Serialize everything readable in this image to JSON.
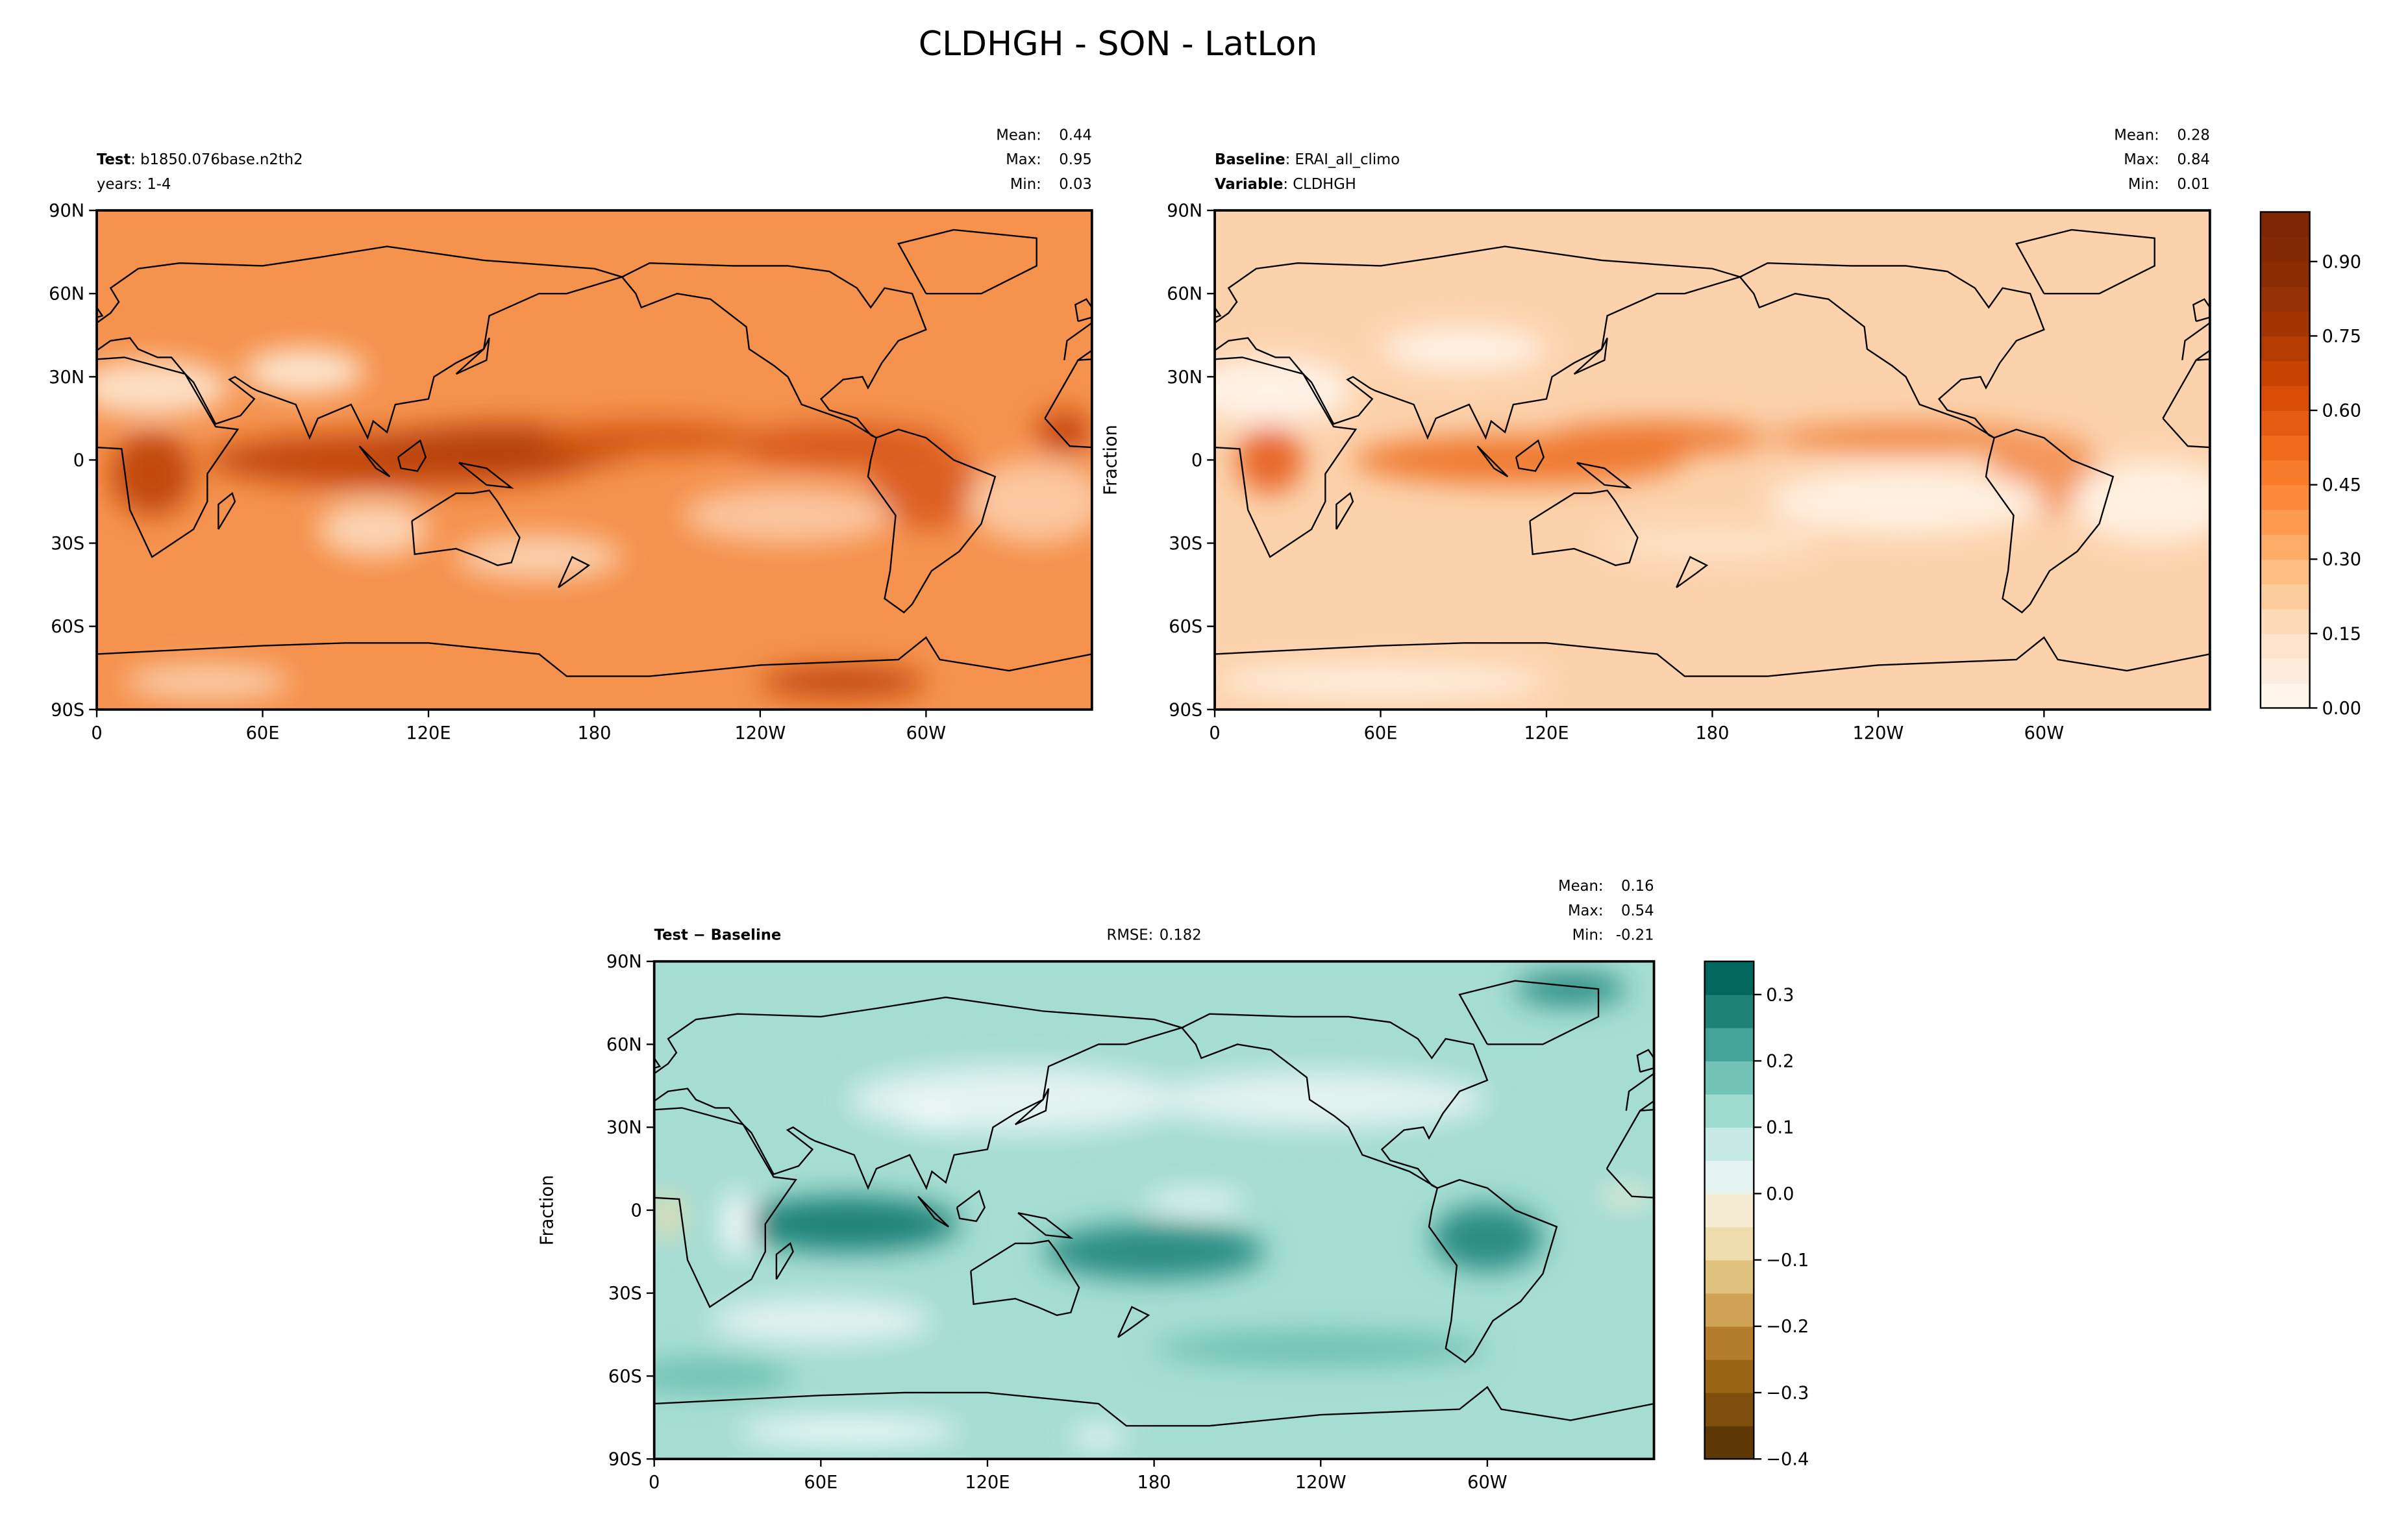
{
  "title": "CLDHGH - SON - LatLon",
  "chart_data": [
    {
      "type": "contour",
      "name_lines": [
        [
          {
            "text": "Test",
            "bold": true
          },
          {
            "text": ": b1850.076base.n2th2"
          }
        ],
        [
          {
            "text": "years: 1-4"
          }
        ]
      ],
      "stats": [
        {
          "label": "Mean:",
          "value": 0.44
        },
        {
          "label": "Max:",
          "value": 0.95
        },
        {
          "label": "Min:",
          "value": 0.03
        }
      ],
      "xlim": [
        0,
        360
      ],
      "xticks": [
        0,
        {
          "value": 60,
          "label": "60E"
        },
        {
          "value": 120,
          "label": "120E"
        },
        180,
        {
          "value": 240,
          "label": "120W"
        },
        {
          "value": 300,
          "label": "60W"
        }
      ],
      "ylim": [
        -90,
        90
      ],
      "yticks": [
        {
          "value": -90,
          "label": "90S"
        },
        {
          "value": -60,
          "label": "60S"
        },
        {
          "value": -30,
          "label": "30S"
        },
        0,
        {
          "value": 30,
          "label": "30N"
        },
        {
          "value": 60,
          "label": "60N"
        },
        {
          "value": 90,
          "label": "90N"
        }
      ]
    },
    {
      "type": "contour",
      "name_lines": [
        [
          {
            "text": "Baseline",
            "bold": true
          },
          {
            "text": ": ERAI_all_climo"
          }
        ],
        [
          {
            "text": "Variable",
            "bold": true
          },
          {
            "text": ": CLDHGH"
          }
        ]
      ],
      "stats": [
        {
          "label": "Mean:",
          "value": 0.28
        },
        {
          "label": "Max:",
          "value": 0.84
        },
        {
          "label": "Min:",
          "value": 0.01
        }
      ],
      "ylabel": "Fraction",
      "xlim": [
        0,
        360
      ],
      "xticks": [
        0,
        {
          "value": 60,
          "label": "60E"
        },
        {
          "value": 120,
          "label": "120E"
        },
        180,
        {
          "value": 240,
          "label": "120W"
        },
        {
          "value": 300,
          "label": "60W"
        }
      ],
      "ylim": [
        -90,
        90
      ],
      "yticks": [
        {
          "value": -90,
          "label": "90S"
        },
        {
          "value": -60,
          "label": "60S"
        },
        {
          "value": -30,
          "label": "30S"
        },
        0,
        {
          "value": 30,
          "label": "30N"
        },
        {
          "value": 60,
          "label": "60N"
        },
        {
          "value": 90,
          "label": "90N"
        }
      ],
      "colorbar": {
        "lim": [
          0,
          1
        ],
        "ticks": [
          {
            "value": 0,
            "label": "0.00"
          },
          0.15,
          {
            "value": 0.3,
            "label": "0.30"
          },
          0.45,
          {
            "value": 0.6,
            "label": "0.60"
          },
          0.75,
          {
            "value": 0.9,
            "label": "0.90"
          }
        ],
        "colors": [
          "#fff5eb",
          "#feeddd",
          "#fee4cc",
          "#fdd9b5",
          "#fdcc9c",
          "#fdbd83",
          "#fdab67",
          "#fd9a50",
          "#fd8a3c",
          "#f87a2b",
          "#f06a1c",
          "#e65a11",
          "#d94d07",
          "#c84302",
          "#b43c02",
          "#a23503",
          "#953104",
          "#8a2d04",
          "#832a04",
          "#7f2704"
        ]
      }
    },
    {
      "type": "contour",
      "name_lines": [
        [
          {
            "text": "Test − Baseline",
            "bold": true
          }
        ]
      ],
      "rmse": {
        "label": "RMSE:",
        "value": 0.182
      },
      "stats": [
        {
          "label": "Mean:",
          "value": 0.16
        },
        {
          "label": "Max:",
          "value": 0.54
        },
        {
          "label": "Min:",
          "value": -0.21
        }
      ],
      "ylabel": "Fraction",
      "xlim": [
        0,
        360
      ],
      "xticks": [
        0,
        {
          "value": 60,
          "label": "60E"
        },
        {
          "value": 120,
          "label": "120E"
        },
        180,
        {
          "value": 240,
          "label": "120W"
        },
        {
          "value": 300,
          "label": "60W"
        }
      ],
      "ylim": [
        -90,
        90
      ],
      "yticks": [
        {
          "value": -90,
          "label": "90S"
        },
        {
          "value": -60,
          "label": "60S"
        },
        {
          "value": -30,
          "label": "30S"
        },
        0,
        {
          "value": 30,
          "label": "30N"
        },
        {
          "value": 60,
          "label": "60N"
        },
        {
          "value": 90,
          "label": "90N"
        }
      ],
      "colorbar": {
        "lim": [
          -0.4,
          0.35
        ],
        "ticks": [
          {
            "value": -0.4,
            "label": "−0.4"
          },
          {
            "value": -0.3,
            "label": "−0.3"
          },
          {
            "value": -0.2,
            "label": "−0.2"
          },
          {
            "value": -0.1,
            "label": "−0.1"
          },
          {
            "value": 0,
            "label": "0.0"
          },
          0.1,
          0.2,
          0.3
        ],
        "colors": [
          "#5e3805",
          "#7e4e0c",
          "#9b6516",
          "#b57d2b",
          "#cfa255",
          "#dfc27d",
          "#eedcac",
          "#f6ecd4",
          "#e4f3f0",
          "#c7eae4",
          "#a0dbd0",
          "#72c3b6",
          "#44a398",
          "#1f8277",
          "#01665e"
        ]
      }
    }
  ]
}
